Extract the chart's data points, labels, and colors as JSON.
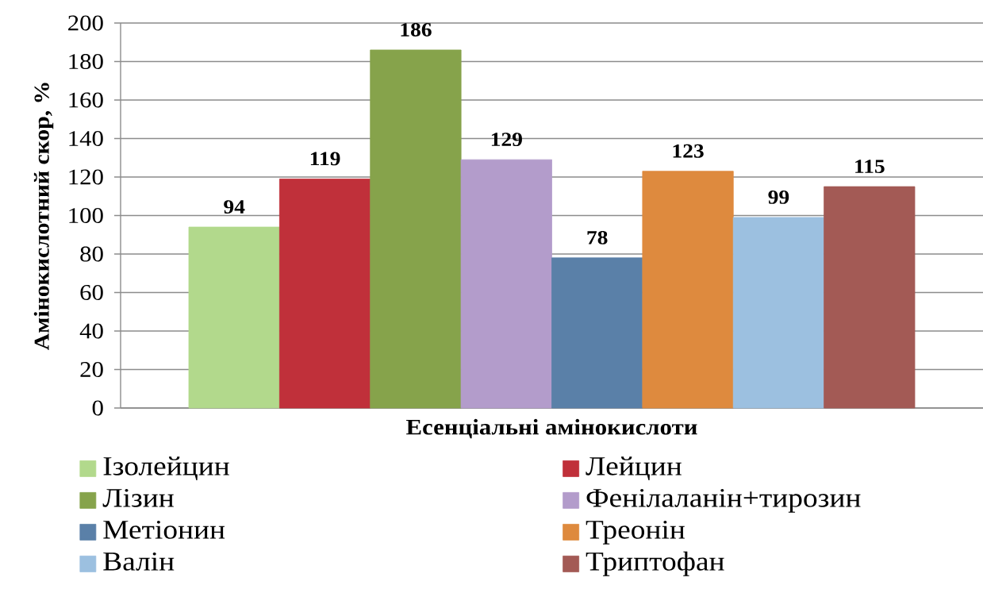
{
  "chart_data": {
    "type": "bar",
    "xlabel": "Есенціальні амінокислоти",
    "ylabel": "Амінокислотний скор, %",
    "categories": [
      null
    ],
    "series": [
      {
        "name": "Ізолейцин",
        "color": "#b2d98c",
        "values": [
          94
        ]
      },
      {
        "name": "Лейцин",
        "color": "#c0303a",
        "values": [
          119
        ]
      },
      {
        "name": "Лізин",
        "color": "#86a34b",
        "values": [
          186
        ]
      },
      {
        "name": "Фенілаланін+тирозин",
        "color": "#b39ccb",
        "values": [
          129
        ]
      },
      {
        "name": "Метіонин",
        "color": "#5a80a8",
        "values": [
          78
        ]
      },
      {
        "name": "Треонін",
        "color": "#de8a3e",
        "values": [
          123
        ]
      },
      {
        "name": "Валін",
        "color": "#9cc0e0",
        "values": [
          99
        ]
      },
      {
        "name": "Триптофан",
        "color": "#a35a55",
        "values": [
          115
        ]
      }
    ],
    "ylim": [
      0,
      200
    ],
    "yticks": [
      0,
      20,
      40,
      60,
      80,
      100,
      120,
      140,
      160,
      180,
      200
    ],
    "grid": "y",
    "legend": "bottom",
    "data_labels": true
  }
}
